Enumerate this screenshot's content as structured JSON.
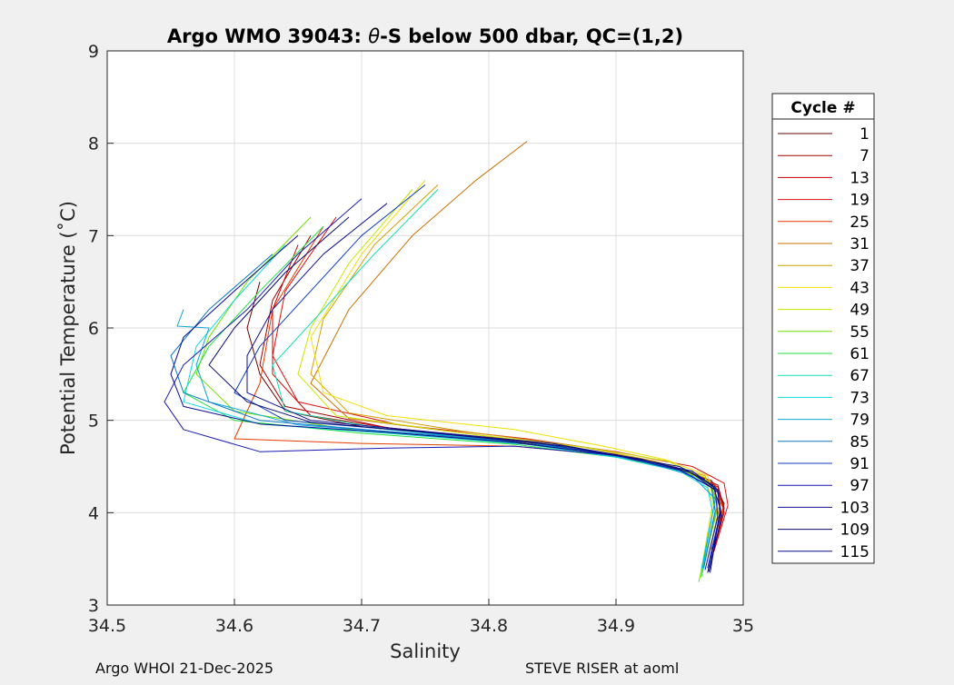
{
  "chart_data": {
    "type": "line",
    "title_prefix": "Argo WMO 39043: ",
    "title_theta": "θ",
    "title_suffix": "-S below 500 dbar,  QC=(1,2)",
    "xlabel": "Salinity",
    "ylabel": "Potential Temperature (˚C)",
    "xlim": [
      34.5,
      35.0
    ],
    "ylim": [
      3,
      9
    ],
    "xticks": [
      34.5,
      34.6,
      34.7,
      34.8,
      34.9,
      35.0
    ],
    "xtick_labels": [
      "34.5",
      "34.6",
      "34.7",
      "34.8",
      "34.9",
      "35"
    ],
    "yticks": [
      3,
      4,
      5,
      6,
      7,
      8,
      9
    ],
    "ytick_labels": [
      "3",
      "4",
      "5",
      "6",
      "7",
      "8",
      "9"
    ],
    "grid": true,
    "legend": {
      "title": "Cycle #",
      "placement": "right",
      "entries": [
        {
          "label": "1",
          "color": "#6b0000"
        },
        {
          "label": "7",
          "color": "#a00000"
        },
        {
          "label": "13",
          "color": "#c80000"
        },
        {
          "label": "19",
          "color": "#dc1010"
        },
        {
          "label": "25",
          "color": "#e63c00"
        },
        {
          "label": "31",
          "color": "#c87000"
        },
        {
          "label": "37",
          "color": "#d0a000"
        },
        {
          "label": "43",
          "color": "#f0e000"
        },
        {
          "label": "49",
          "color": "#c8e800"
        },
        {
          "label": "55",
          "color": "#70e000"
        },
        {
          "label": "61",
          "color": "#20e040"
        },
        {
          "label": "67",
          "color": "#10e0b0"
        },
        {
          "label": "73",
          "color": "#10d8e0"
        },
        {
          "label": "79",
          "color": "#0aa8d8"
        },
        {
          "label": "85",
          "color": "#0a78c8"
        },
        {
          "label": "91",
          "color": "#0a3cc0"
        },
        {
          "label": "97",
          "color": "#1818b0"
        },
        {
          "label": "103",
          "color": "#101090"
        },
        {
          "label": "109",
          "color": "#0a0a70"
        },
        {
          "label": "115",
          "color": "#0a0a8c"
        }
      ]
    },
    "series": [
      {
        "name": "1",
        "color": "#6b0000",
        "points": [
          [
            34.62,
            6.5
          ],
          [
            34.61,
            6.0
          ],
          [
            34.62,
            5.5
          ],
          [
            34.64,
            5.1
          ],
          [
            34.7,
            4.93
          ],
          [
            34.8,
            4.8
          ],
          [
            34.88,
            4.66
          ],
          [
            34.94,
            4.5
          ],
          [
            34.975,
            4.35
          ],
          [
            34.985,
            4.1
          ],
          [
            34.975,
            3.6
          ]
        ]
      },
      {
        "name": "7",
        "color": "#a00000",
        "points": [
          [
            34.66,
            7.0
          ],
          [
            34.63,
            6.3
          ],
          [
            34.62,
            5.6
          ],
          [
            34.64,
            5.15
          ],
          [
            34.72,
            4.92
          ],
          [
            34.82,
            4.78
          ],
          [
            34.9,
            4.63
          ],
          [
            34.95,
            4.48
          ],
          [
            34.98,
            4.3
          ],
          [
            34.985,
            4.05
          ],
          [
            34.976,
            3.55
          ]
        ]
      },
      {
        "name": "13",
        "color": "#c80000",
        "points": [
          [
            34.65,
            6.9
          ],
          [
            34.63,
            6.2
          ],
          [
            34.63,
            5.5
          ],
          [
            34.66,
            5.05
          ],
          [
            34.74,
            4.88
          ],
          [
            34.84,
            4.75
          ],
          [
            34.91,
            4.6
          ],
          [
            34.955,
            4.45
          ],
          [
            34.98,
            4.28
          ],
          [
            34.985,
            4.0
          ],
          [
            34.975,
            3.5
          ]
        ]
      },
      {
        "name": "19",
        "color": "#dc1010",
        "points": [
          [
            34.68,
            7.2
          ],
          [
            34.64,
            6.4
          ],
          [
            34.63,
            5.7
          ],
          [
            34.65,
            5.2
          ],
          [
            34.73,
            4.95
          ],
          [
            34.83,
            4.8
          ],
          [
            34.9,
            4.66
          ],
          [
            34.96,
            4.5
          ],
          [
            34.985,
            4.32
          ],
          [
            34.988,
            4.08
          ],
          [
            34.977,
            3.58
          ]
        ]
      },
      {
        "name": "25",
        "color": "#e63c00",
        "points": [
          [
            34.67,
            7.1
          ],
          [
            34.63,
            6.2
          ],
          [
            34.62,
            5.4
          ],
          [
            34.6,
            4.8
          ],
          [
            34.7,
            4.75
          ],
          [
            34.82,
            4.72
          ],
          [
            34.9,
            4.62
          ],
          [
            34.95,
            4.47
          ],
          [
            34.978,
            4.3
          ],
          [
            34.984,
            4.05
          ],
          [
            34.974,
            3.52
          ]
        ]
      },
      {
        "name": "31",
        "color": "#c87000",
        "points": [
          [
            34.83,
            8.02
          ],
          [
            34.79,
            7.6
          ],
          [
            34.74,
            7.0
          ],
          [
            34.69,
            6.2
          ],
          [
            34.66,
            5.4
          ],
          [
            34.69,
            5.02
          ],
          [
            34.78,
            4.86
          ],
          [
            34.87,
            4.7
          ],
          [
            34.93,
            4.55
          ],
          [
            34.97,
            4.38
          ],
          [
            34.982,
            4.1
          ],
          [
            34.972,
            3.5
          ]
        ]
      },
      {
        "name": "37",
        "color": "#d0a000",
        "points": [
          [
            34.76,
            7.55
          ],
          [
            34.71,
            6.9
          ],
          [
            34.67,
            6.1
          ],
          [
            34.66,
            5.5
          ],
          [
            34.69,
            5.08
          ],
          [
            34.78,
            4.88
          ],
          [
            34.87,
            4.72
          ],
          [
            34.93,
            4.56
          ],
          [
            34.97,
            4.4
          ],
          [
            34.98,
            4.1
          ],
          [
            34.97,
            3.48
          ]
        ]
      },
      {
        "name": "43",
        "color": "#f0e000",
        "points": [
          [
            34.75,
            7.6
          ],
          [
            34.7,
            6.8
          ],
          [
            34.66,
            5.9
          ],
          [
            34.67,
            5.3
          ],
          [
            34.72,
            5.05
          ],
          [
            34.82,
            4.9
          ],
          [
            34.89,
            4.72
          ],
          [
            34.94,
            4.57
          ],
          [
            34.972,
            4.4
          ],
          [
            34.978,
            4.12
          ],
          [
            34.968,
            3.45
          ]
        ]
      },
      {
        "name": "49",
        "color": "#c8e800",
        "points": [
          [
            34.74,
            7.5
          ],
          [
            34.69,
            6.7
          ],
          [
            34.66,
            6.0
          ],
          [
            34.65,
            5.5
          ],
          [
            34.68,
            5.05
          ],
          [
            34.78,
            4.86
          ],
          [
            34.88,
            4.7
          ],
          [
            34.94,
            4.56
          ],
          [
            34.97,
            4.38
          ],
          [
            34.976,
            4.1
          ],
          [
            34.966,
            3.3
          ]
        ]
      },
      {
        "name": "55",
        "color": "#70e000",
        "points": [
          [
            34.66,
            7.2
          ],
          [
            34.61,
            6.5
          ],
          [
            34.58,
            5.9
          ],
          [
            34.57,
            5.5
          ],
          [
            34.6,
            5.1
          ],
          [
            34.7,
            4.88
          ],
          [
            34.82,
            4.76
          ],
          [
            34.9,
            4.62
          ],
          [
            34.95,
            4.48
          ],
          [
            34.975,
            4.3
          ],
          [
            34.98,
            4.05
          ],
          [
            34.965,
            3.25
          ]
        ]
      },
      {
        "name": "61",
        "color": "#20e040",
        "points": [
          [
            34.67,
            7.1
          ],
          [
            34.62,
            6.4
          ],
          [
            34.58,
            5.8
          ],
          [
            34.56,
            5.3
          ],
          [
            34.6,
            5.0
          ],
          [
            34.7,
            4.86
          ],
          [
            34.82,
            4.74
          ],
          [
            34.9,
            4.6
          ],
          [
            34.95,
            4.46
          ],
          [
            34.975,
            4.28
          ],
          [
            34.978,
            4.02
          ],
          [
            34.967,
            3.3
          ]
        ]
      },
      {
        "name": "67",
        "color": "#10e0b0",
        "points": [
          [
            34.76,
            7.5
          ],
          [
            34.71,
            6.8
          ],
          [
            34.67,
            6.2
          ],
          [
            34.63,
            5.6
          ],
          [
            34.64,
            5.1
          ],
          [
            34.72,
            4.9
          ],
          [
            34.83,
            4.76
          ],
          [
            34.9,
            4.62
          ],
          [
            34.95,
            4.46
          ],
          [
            34.975,
            4.28
          ],
          [
            34.978,
            4.0
          ],
          [
            34.968,
            3.35
          ]
        ]
      },
      {
        "name": "73",
        "color": "#10d8e0",
        "points": [
          [
            34.64,
            6.9
          ],
          [
            34.6,
            6.3
          ],
          [
            34.57,
            5.8
          ],
          [
            34.56,
            5.2
          ],
          [
            34.62,
            4.96
          ],
          [
            34.72,
            4.86
          ],
          [
            34.83,
            4.74
          ],
          [
            34.9,
            4.6
          ],
          [
            34.95,
            4.45
          ],
          [
            34.972,
            4.27
          ],
          [
            34.976,
            4.0
          ],
          [
            34.967,
            3.38
          ]
        ]
      },
      {
        "name": "79",
        "color": "#0aa8d8",
        "points": [
          [
            34.56,
            6.2
          ],
          [
            34.555,
            6.02
          ],
          [
            34.58,
            6.0
          ],
          [
            34.57,
            5.6
          ],
          [
            34.58,
            5.2
          ],
          [
            34.65,
            4.95
          ],
          [
            34.76,
            4.84
          ],
          [
            34.86,
            4.7
          ],
          [
            34.92,
            4.56
          ],
          [
            34.96,
            4.4
          ],
          [
            34.978,
            4.15
          ],
          [
            34.968,
            3.4
          ]
        ]
      },
      {
        "name": "85",
        "color": "#0a78c8",
        "points": [
          [
            34.63,
            6.8
          ],
          [
            34.58,
            6.2
          ],
          [
            34.55,
            5.7
          ],
          [
            34.56,
            5.3
          ],
          [
            34.62,
            5.0
          ],
          [
            34.72,
            4.88
          ],
          [
            34.83,
            4.76
          ],
          [
            34.9,
            4.62
          ],
          [
            34.95,
            4.47
          ],
          [
            34.975,
            4.28
          ],
          [
            34.978,
            4.02
          ],
          [
            34.969,
            3.4
          ]
        ]
      },
      {
        "name": "91",
        "color": "#0a3cc0",
        "points": [
          [
            34.75,
            7.55
          ],
          [
            34.7,
            7.0
          ],
          [
            34.66,
            6.4
          ],
          [
            34.62,
            5.8
          ],
          [
            34.6,
            5.3
          ],
          [
            34.64,
            5.0
          ],
          [
            34.74,
            4.88
          ],
          [
            34.84,
            4.75
          ],
          [
            34.91,
            4.6
          ],
          [
            34.96,
            4.45
          ],
          [
            34.98,
            4.25
          ],
          [
            34.982,
            4.0
          ],
          [
            34.972,
            3.4
          ]
        ]
      },
      {
        "name": "97",
        "color": "#1818b0",
        "points": [
          [
            34.7,
            7.4
          ],
          [
            34.65,
            6.8
          ],
          [
            34.61,
            6.2
          ],
          [
            34.56,
            5.6
          ],
          [
            34.545,
            5.2
          ],
          [
            34.56,
            4.9
          ],
          [
            34.62,
            4.66
          ],
          [
            34.72,
            4.7
          ],
          [
            34.82,
            4.72
          ],
          [
            34.9,
            4.62
          ],
          [
            34.95,
            4.46
          ],
          [
            34.978,
            4.25
          ],
          [
            34.98,
            3.95
          ],
          [
            34.97,
            3.38
          ]
        ]
      },
      {
        "name": "103",
        "color": "#101090",
        "points": [
          [
            34.72,
            7.35
          ],
          [
            34.67,
            6.8
          ],
          [
            34.63,
            6.2
          ],
          [
            34.61,
            5.7
          ],
          [
            34.61,
            5.3
          ],
          [
            34.66,
            5.0
          ],
          [
            34.75,
            4.88
          ],
          [
            34.85,
            4.75
          ],
          [
            34.91,
            4.6
          ],
          [
            34.96,
            4.45
          ],
          [
            34.98,
            4.24
          ],
          [
            34.982,
            3.98
          ],
          [
            34.972,
            3.35
          ]
        ]
      },
      {
        "name": "109",
        "color": "#0a0a70",
        "points": [
          [
            34.69,
            7.2
          ],
          [
            34.64,
            6.6
          ],
          [
            34.6,
            6.0
          ],
          [
            34.58,
            5.6
          ],
          [
            34.61,
            5.2
          ],
          [
            34.66,
            4.98
          ],
          [
            34.76,
            4.86
          ],
          [
            34.86,
            4.72
          ],
          [
            34.92,
            4.58
          ],
          [
            34.96,
            4.43
          ],
          [
            34.98,
            4.22
          ],
          [
            34.983,
            3.96
          ],
          [
            34.973,
            3.36
          ]
        ]
      },
      {
        "name": "115",
        "color": "#0a0a8c",
        "points": [
          [
            34.65,
            7.0
          ],
          [
            34.6,
            6.4
          ],
          [
            34.56,
            5.9
          ],
          [
            34.55,
            5.5
          ],
          [
            34.56,
            5.15
          ],
          [
            34.62,
            4.96
          ],
          [
            34.72,
            4.87
          ],
          [
            34.82,
            4.76
          ],
          [
            34.89,
            4.64
          ],
          [
            34.95,
            4.5
          ],
          [
            34.976,
            4.3
          ],
          [
            34.982,
            4.05
          ],
          [
            34.974,
            3.35
          ]
        ]
      }
    ]
  },
  "footer": {
    "left": "Argo WHOI 21-Dec-2025",
    "right": "STEVE RISER at aoml"
  }
}
